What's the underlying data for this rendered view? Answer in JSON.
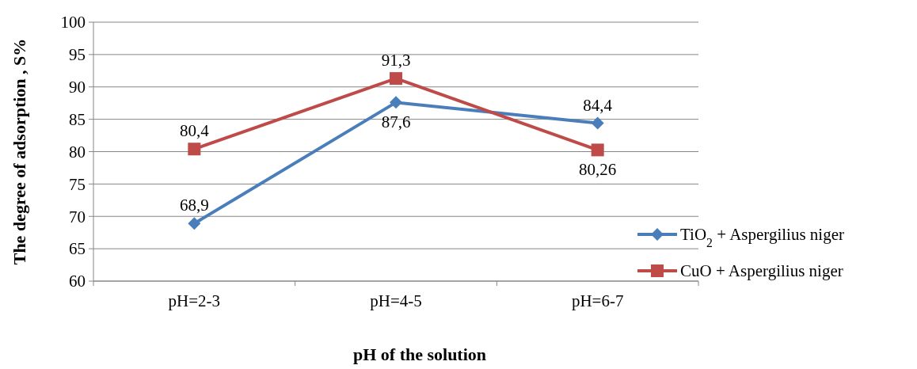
{
  "chart_data": {
    "type": "line",
    "xlabel": "pH of the solution",
    "ylabel": "The degree of adsorption , S%",
    "categories": [
      "pH=2-3",
      "pH=4-5",
      "pH=6-7"
    ],
    "series": [
      {
        "name": "TiO$_{2}$ + Aspergilius niger",
        "color": "#4a7ebb",
        "marker": "diamond",
        "values": [
          68.9,
          87.6,
          84.4
        ],
        "value_labels": [
          "68,9",
          "87,6",
          "84,4"
        ]
      },
      {
        "name": "CuO + Aspergilius niger",
        "color": "#be4b48",
        "marker": "square",
        "values": [
          80.4,
          91.3,
          80.26
        ],
        "value_labels": [
          "80,4",
          "91,3",
          "80,26"
        ]
      }
    ],
    "ylim": [
      60,
      100
    ],
    "yticks": [
      60,
      65,
      70,
      75,
      80,
      85,
      90,
      95,
      100
    ],
    "grid": "y",
    "legend": "right"
  }
}
